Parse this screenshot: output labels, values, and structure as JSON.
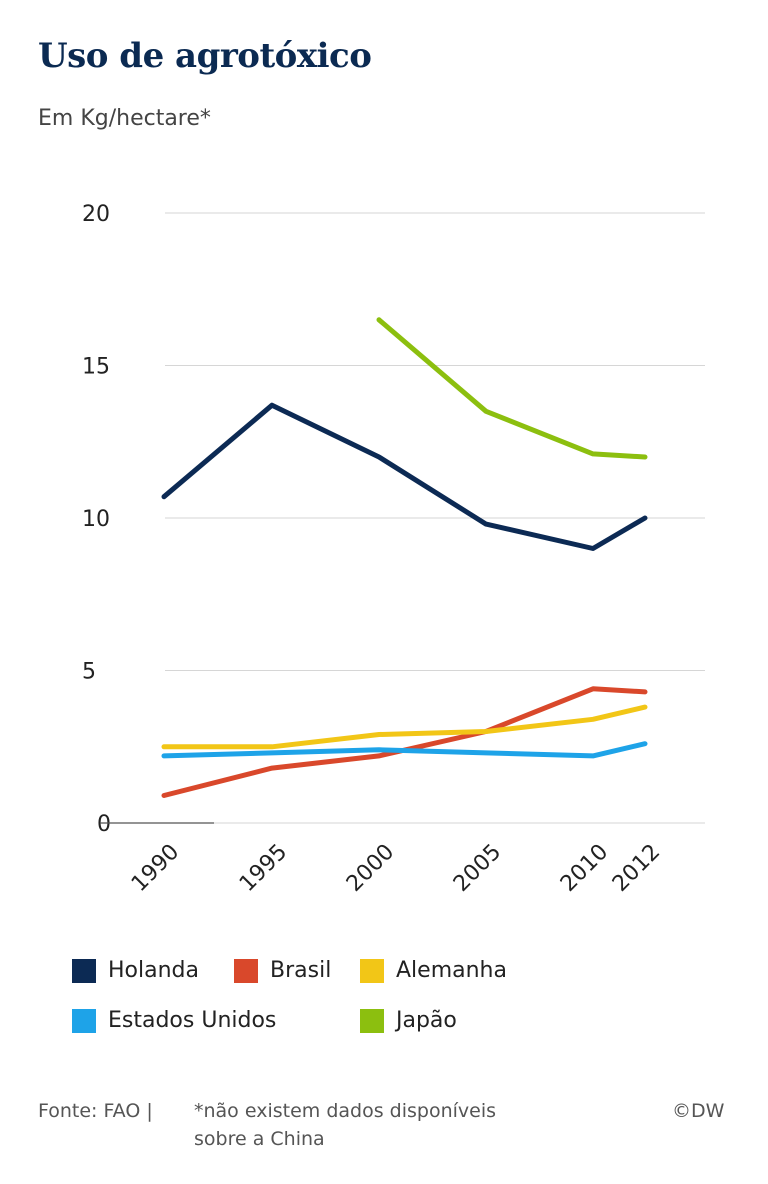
{
  "title": "Uso de agrotóxico",
  "subtitle": "Em Kg/hectare*",
  "colors": {
    "Holanda": "#0c2a54",
    "Brasil": "#d9482b",
    "Alemanha": "#f2c617",
    "Estados Unidos": "#1ea3e8",
    "Japão": "#8cbf0f",
    "grid": "#d6d6d6"
  },
  "chart_data": {
    "type": "line",
    "x": [
      1990,
      1995,
      2000,
      2005,
      2010,
      2012
    ],
    "x_tick_labels": [
      "1990",
      "1995",
      "2000",
      "2005",
      "2010",
      "2012"
    ],
    "y_ticks": [
      "0",
      "5",
      "10",
      "15",
      "20"
    ],
    "ylim": [
      0,
      20
    ],
    "series": [
      {
        "name": "Holanda",
        "values": [
          10.7,
          13.7,
          12.0,
          9.8,
          9.0,
          10.0
        ]
      },
      {
        "name": "Brasil",
        "values": [
          0.9,
          1.8,
          2.2,
          3.0,
          4.4,
          4.3
        ]
      },
      {
        "name": "Alemanha",
        "values": [
          2.5,
          2.5,
          2.9,
          3.0,
          3.4,
          3.8
        ]
      },
      {
        "name": "Estados Unidos",
        "values": [
          2.2,
          2.3,
          2.4,
          2.3,
          2.2,
          2.6
        ]
      },
      {
        "name": "Japão",
        "values": [
          null,
          null,
          16.5,
          13.5,
          12.1,
          12.0
        ]
      }
    ],
    "legend": [
      {
        "label": "Holanda"
      },
      {
        "label": "Brasil"
      },
      {
        "label": "Alemanha"
      },
      {
        "label": "Estados Unidos"
      },
      {
        "label": "Japão"
      }
    ]
  },
  "footer": {
    "source": "Fonte: FAO |",
    "note_line1": "*não existem dados disponíveis",
    "note_line2": "sobre a China",
    "credit": "©DW"
  }
}
